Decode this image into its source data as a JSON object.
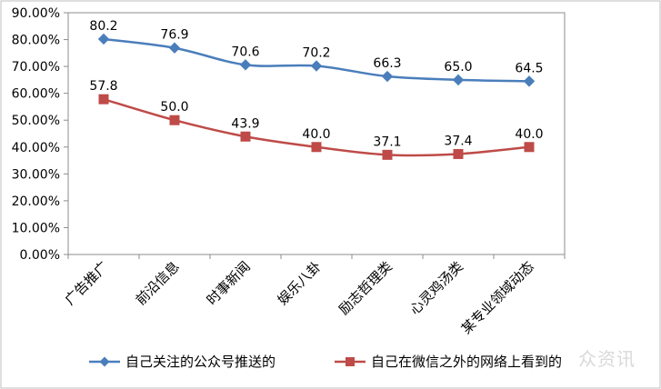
{
  "chart_data": {
    "type": "line",
    "categories": [
      "广告推广",
      "前沿信息",
      "时事新闻",
      "娱乐八卦",
      "励志哲理类",
      "心灵鸡汤类",
      "某专业领域动态"
    ],
    "series": [
      {
        "name": "自己关注的公众号推送的",
        "values": [
          80.2,
          76.9,
          70.6,
          70.2,
          66.3,
          65.0,
          64.5
        ],
        "labels": [
          "80.2",
          "76.9",
          "70.6",
          "70.2",
          "66.3",
          "65.0",
          "64.5"
        ],
        "color": "#4a7ebb",
        "marker": "diamond"
      },
      {
        "name": "自己在微信之外的网络上看到的",
        "values": [
          57.8,
          50.0,
          43.9,
          40.0,
          37.1,
          37.4,
          40.0
        ],
        "labels": [
          "57.8",
          "50.0",
          "43.9",
          "40.0",
          "37.1",
          "37.4",
          "40.0"
        ],
        "color": "#be4b48",
        "marker": "square"
      }
    ],
    "y_ticks": [
      "0.00%",
      "10.00%",
      "20.00%",
      "30.00%",
      "40.00%",
      "50.00%",
      "60.00%",
      "70.00%",
      "80.00%",
      "90.00%"
    ],
    "ylim": [
      0,
      90
    ],
    "grid": false,
    "legend_position": "bottom",
    "title": "",
    "xlabel": "",
    "ylabel": ""
  },
  "watermark": "众资讯"
}
